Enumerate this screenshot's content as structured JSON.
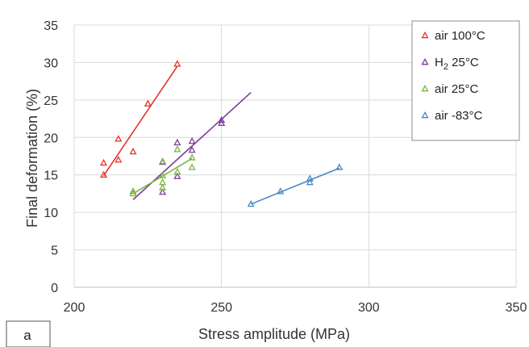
{
  "chart_data": {
    "type": "scatter",
    "panel_label": "a",
    "xlabel": "Stress amplitude (MPa)",
    "ylabel": "Final deformation (%)",
    "xlim": [
      200,
      350
    ],
    "ylim": [
      0,
      35
    ],
    "x_ticks": [
      200,
      250,
      300,
      350
    ],
    "y_ticks": [
      0,
      5,
      10,
      15,
      20,
      25,
      30,
      35
    ],
    "grid": true,
    "legend_position": "top-right",
    "marker": "open-triangle",
    "series": [
      {
        "name": "air 100°C",
        "label_main": "air 100°C",
        "label_sub": "",
        "label_tail": "",
        "color": "#e8322a",
        "points": [
          [
            210,
            15.0
          ],
          [
            210,
            16.6
          ],
          [
            215,
            17.0
          ],
          [
            215,
            19.8
          ],
          [
            220,
            18.1
          ],
          [
            225,
            24.5
          ],
          [
            235,
            29.8
          ]
        ],
        "trendline": [
          [
            210,
            14.9
          ],
          [
            235,
            29.5
          ]
        ]
      },
      {
        "name": "H2 25°C",
        "label_main": "H",
        "label_sub": "2",
        "label_tail": " 25°C",
        "color": "#7d3d9a",
        "points": [
          [
            230,
            12.7
          ],
          [
            230,
            16.7
          ],
          [
            235,
            14.8
          ],
          [
            235,
            19.3
          ],
          [
            240,
            18.3
          ],
          [
            240,
            19.5
          ],
          [
            250,
            21.9
          ],
          [
            250,
            22.3
          ]
        ],
        "trendline": [
          [
            220,
            11.7
          ],
          [
            260,
            26.0
          ]
        ]
      },
      {
        "name": "air 25°C",
        "label_main": "air 25°C",
        "label_sub": "",
        "label_tail": "",
        "color": "#7ab63f",
        "points": [
          [
            220,
            12.5
          ],
          [
            220,
            12.8
          ],
          [
            230,
            13.3
          ],
          [
            230,
            14.0
          ],
          [
            230,
            14.9
          ],
          [
            230,
            16.8
          ],
          [
            235,
            15.4
          ],
          [
            235,
            18.4
          ],
          [
            240,
            16.0
          ],
          [
            240,
            17.3
          ]
        ],
        "trendline": [
          [
            220,
            12.5
          ],
          [
            240,
            17.2
          ]
        ]
      },
      {
        "name": "air -83°C",
        "label_main": "air -83°C",
        "label_sub": "",
        "label_tail": "",
        "color": "#4a86c8",
        "points": [
          [
            260,
            11.1
          ],
          [
            270,
            12.8
          ],
          [
            280,
            14.0
          ],
          [
            280,
            14.5
          ],
          [
            290,
            16.0
          ]
        ],
        "trendline": [
          [
            260,
            11.1
          ],
          [
            290,
            15.9
          ]
        ]
      }
    ]
  }
}
